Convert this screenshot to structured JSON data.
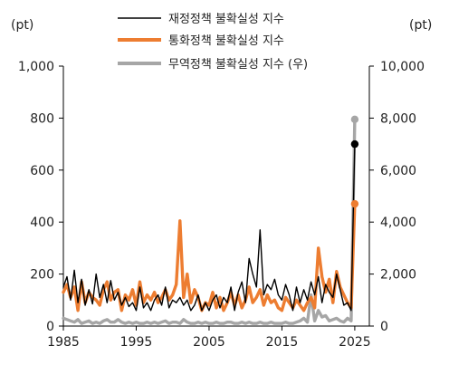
{
  "chart_data": {
    "type": "line",
    "left_unit": "(pt)",
    "right_unit": "(pt)",
    "left_axis": {
      "ylim": [
        0,
        1000
      ],
      "ticks": [
        "1,000",
        "800",
        "600",
        "400",
        "200",
        "0"
      ]
    },
    "right_axis": {
      "ylim": [
        0,
        10000
      ],
      "ticks": [
        "10,000",
        "8,000",
        "6,000",
        "4,000",
        "2,000",
        "0"
      ]
    },
    "x_axis": {
      "xlim": [
        1985,
        2027
      ],
      "ticks": [
        "1985",
        "1995",
        "2005",
        "2015",
        "2025"
      ]
    },
    "legend_placement": "top-center",
    "series": [
      {
        "name": "재정정책 불확실성 지수",
        "axis": "left",
        "color": "#000000",
        "x": [
          1985,
          1985.5,
          1986,
          1986.5,
          1987,
          1987.5,
          1988,
          1988.5,
          1989,
          1989.5,
          1990,
          1990.5,
          1991,
          1991.5,
          1992,
          1992.5,
          1993,
          1993.5,
          1994,
          1994.5,
          1995,
          1995.5,
          1996,
          1996.5,
          1997,
          1997.5,
          1998,
          1998.5,
          1999,
          1999.5,
          2000,
          2000.5,
          2001,
          2001.5,
          2002,
          2002.5,
          2003,
          2003.5,
          2004,
          2004.5,
          2005,
          2005.5,
          2006,
          2006.5,
          2007,
          2007.5,
          2008,
          2008.5,
          2009,
          2009.5,
          2010,
          2010.5,
          2011,
          2011.5,
          2012,
          2012.5,
          2013,
          2013.5,
          2014,
          2014.5,
          2015,
          2015.5,
          2016,
          2016.5,
          2017,
          2017.5,
          2018,
          2018.5,
          2019,
          2019.5,
          2020,
          2020.5,
          2021,
          2021.5,
          2022,
          2022.5,
          2023,
          2023.5,
          2024,
          2024.5,
          2025
        ],
        "values": [
          150,
          190,
          100,
          215,
          90,
          180,
          80,
          140,
          85,
          200,
          110,
          160,
          90,
          175,
          100,
          130,
          80,
          110,
          75,
          90,
          60,
          150,
          70,
          90,
          60,
          100,
          120,
          80,
          150,
          70,
          100,
          90,
          110,
          80,
          100,
          60,
          80,
          120,
          60,
          90,
          60,
          100,
          120,
          70,
          110,
          90,
          150,
          60,
          130,
          170,
          90,
          260,
          200,
          150,
          370,
          120,
          160,
          140,
          180,
          120,
          100,
          160,
          120,
          60,
          150,
          90,
          140,
          100,
          170,
          120,
          190,
          90,
          160,
          130,
          110,
          200,
          140,
          80,
          90,
          60,
          700
        ],
        "end_value": 700
      },
      {
        "name": "통화정책 불확실성 지수",
        "axis": "left",
        "color": "#ED7D31",
        "x": [
          1985,
          1985.5,
          1986,
          1986.5,
          1987,
          1987.5,
          1988,
          1988.5,
          1989,
          1989.5,
          1990,
          1990.5,
          1991,
          1991.5,
          1992,
          1992.5,
          1993,
          1993.5,
          1994,
          1994.5,
          1995,
          1995.5,
          1996,
          1996.5,
          1997,
          1997.5,
          1998,
          1998.5,
          1999,
          1999.5,
          2000,
          2000.5,
          2001,
          2001.5,
          2002,
          2002.5,
          2003,
          2003.5,
          2004,
          2004.5,
          2005,
          2005.5,
          2006,
          2006.5,
          2007,
          2007.5,
          2008,
          2008.5,
          2009,
          2009.5,
          2010,
          2010.5,
          2011,
          2011.5,
          2012,
          2012.5,
          2013,
          2013.5,
          2014,
          2014.5,
          2015,
          2015.5,
          2016,
          2016.5,
          2017,
          2017.5,
          2018,
          2018.5,
          2019,
          2019.5,
          2020,
          2020.5,
          2021,
          2021.5,
          2022,
          2022.5,
          2023,
          2023.5,
          2024,
          2024.5,
          2025
        ],
        "values": [
          130,
          160,
          110,
          150,
          60,
          170,
          90,
          130,
          110,
          100,
          80,
          140,
          170,
          100,
          130,
          140,
          60,
          120,
          100,
          140,
          80,
          170,
          90,
          120,
          100,
          130,
          90,
          110,
          140,
          100,
          120,
          160,
          405,
          110,
          200,
          90,
          140,
          110,
          60,
          90,
          80,
          130,
          70,
          110,
          60,
          90,
          130,
          80,
          120,
          70,
          100,
          150,
          90,
          110,
          140,
          80,
          120,
          90,
          100,
          70,
          60,
          110,
          90,
          70,
          100,
          80,
          60,
          90,
          110,
          70,
          300,
          190,
          130,
          180,
          90,
          210,
          150,
          120,
          90,
          70,
          470
        ],
        "end_value": 470
      },
      {
        "name": "무역정책 불확실성 지수 (우)",
        "axis": "right",
        "color": "#A6A6A6",
        "x": [
          1985,
          1985.5,
          1986,
          1986.5,
          1987,
          1987.5,
          1988,
          1988.5,
          1989,
          1989.5,
          1990,
          1990.5,
          1991,
          1991.5,
          1992,
          1992.5,
          1993,
          1993.5,
          1994,
          1994.5,
          1995,
          1995.5,
          1996,
          1996.5,
          1997,
          1997.5,
          1998,
          1998.5,
          1999,
          1999.5,
          2000,
          2000.5,
          2001,
          2001.5,
          2002,
          2002.5,
          2003,
          2003.5,
          2004,
          2004.5,
          2005,
          2005.5,
          2006,
          2006.5,
          2007,
          2007.5,
          2008,
          2008.5,
          2009,
          2009.5,
          2010,
          2010.5,
          2011,
          2011.5,
          2012,
          2012.5,
          2013,
          2013.5,
          2014,
          2014.5,
          2015,
          2015.5,
          2016,
          2016.5,
          2017,
          2017.5,
          2018,
          2018.5,
          2019,
          2019.5,
          2020,
          2020.5,
          2021,
          2021.5,
          2022,
          2022.5,
          2023,
          2023.5,
          2024,
          2024.5,
          2025
        ],
        "values": [
          300,
          250,
          200,
          150,
          250,
          100,
          150,
          200,
          100,
          150,
          100,
          200,
          250,
          150,
          150,
          250,
          150,
          100,
          150,
          100,
          150,
          100,
          100,
          150,
          100,
          150,
          100,
          150,
          200,
          100,
          150,
          150,
          100,
          250,
          150,
          100,
          100,
          150,
          100,
          150,
          100,
          100,
          150,
          100,
          100,
          150,
          150,
          100,
          100,
          150,
          100,
          150,
          100,
          100,
          150,
          100,
          100,
          150,
          100,
          100,
          100,
          150,
          100,
          100,
          150,
          200,
          300,
          150,
          1200,
          200,
          600,
          350,
          400,
          200,
          250,
          300,
          200,
          150,
          300,
          200,
          7950
        ],
        "end_value": 7950
      }
    ]
  }
}
